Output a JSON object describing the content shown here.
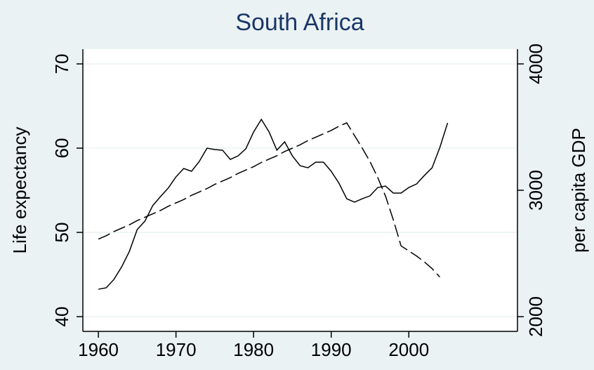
{
  "chart_data": {
    "type": "line",
    "title": "South Africa",
    "y_label": "Life expectancy",
    "y2_label": "per capita GDP",
    "x": [
      1960,
      1961,
      1962,
      1963,
      1964,
      1965,
      1966,
      1967,
      1968,
      1969,
      1970,
      1971,
      1972,
      1973,
      1974,
      1975,
      1976,
      1977,
      1978,
      1979,
      1980,
      1981,
      1982,
      1983,
      1984,
      1985,
      1986,
      1987,
      1988,
      1989,
      1990,
      1991,
      1992,
      1993,
      1994,
      1995,
      1996,
      1997,
      1998,
      1999,
      2000,
      2001,
      2002,
      2003,
      2004,
      2005
    ],
    "series": [
      {
        "name": "Life expectancy",
        "color": "#000000",
        "dash": true,
        "axis": "y",
        "values": [
          49.2,
          49.6,
          50.1,
          50.5,
          50.9,
          51.4,
          51.8,
          52.2,
          52.6,
          53.1,
          53.5,
          53.9,
          54.4,
          54.8,
          55.2,
          55.7,
          56.1,
          56.5,
          57.0,
          57.4,
          57.8,
          58.3,
          58.7,
          59.1,
          59.6,
          60.0,
          60.4,
          60.9,
          61.3,
          61.7,
          62.1,
          62.6,
          63.0,
          61.5,
          60.0,
          58.4,
          56.5,
          54.3,
          51.5,
          48.4,
          47.8,
          47.2,
          46.5,
          45.7,
          44.7,
          null
        ]
      },
      {
        "name": "per capita GDP",
        "color": "#000000",
        "dash": false,
        "axis": "y2",
        "values": [
          2217,
          2228,
          2294,
          2394,
          2517,
          2689,
          2756,
          2878,
          2950,
          3017,
          3106,
          3172,
          3150,
          3228,
          3333,
          3322,
          3317,
          3244,
          3272,
          3328,
          3461,
          3561,
          3461,
          3317,
          3383,
          3272,
          3194,
          3178,
          3222,
          3222,
          3150,
          3056,
          2933,
          2906,
          2933,
          2956,
          3022,
          3033,
          2978,
          2978,
          3022,
          3050,
          3117,
          3178,
          3339,
          3533
        ]
      }
    ],
    "xlim": [
      1958,
      2014
    ],
    "xticks": [
      1960,
      1970,
      1980,
      1990,
      2000
    ],
    "ylim": [
      38.25,
      71.75
    ],
    "yticks": [
      40,
      50,
      60,
      70
    ],
    "y2lim": [
      1883.3,
      4116.7
    ],
    "y2ticks": [
      2000,
      3000,
      4000
    ],
    "grid": true
  }
}
